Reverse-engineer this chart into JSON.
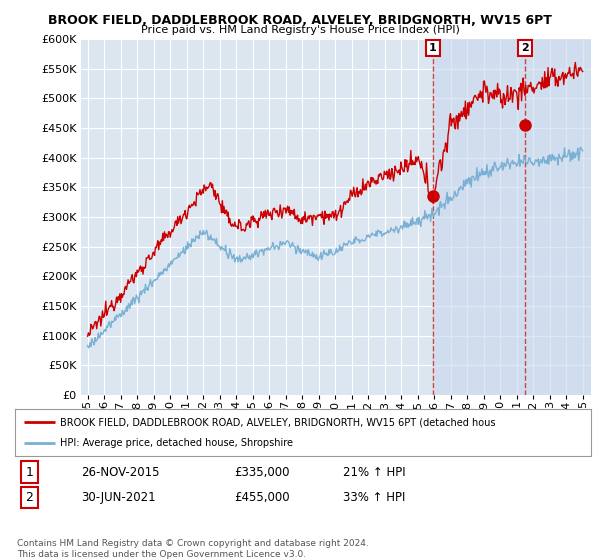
{
  "title": "BROOK FIELD, DADDLEBROOK ROAD, ALVELEY, BRIDGNORTH, WV15 6PT",
  "subtitle": "Price paid vs. HM Land Registry's House Price Index (HPI)",
  "background_color": "#ffffff",
  "plot_bg_color": "#dce6f1",
  "plot_bg_highlight": "#c8d8ec",
  "grid_color": "#ffffff",
  "red_line_color": "#cc0000",
  "blue_line_color": "#7ab0d4",
  "vline_color": "#cc4444",
  "ylim": [
    0,
    600000
  ],
  "yticks": [
    0,
    50000,
    100000,
    150000,
    200000,
    250000,
    300000,
    350000,
    400000,
    450000,
    500000,
    550000,
    600000
  ],
  "sale1_x": 2015.9,
  "sale1_value": 335000,
  "sale2_x": 2021.5,
  "sale2_value": 455000,
  "legend_red_label": "BROOK FIELD, DADDLEBROOK ROAD, ALVELEY, BRIDGNORTH, WV15 6PT (detached hous",
  "legend_blue_label": "HPI: Average price, detached house, Shropshire",
  "table_row1": [
    "1",
    "26-NOV-2015",
    "£335,000",
    "21% ↑ HPI"
  ],
  "table_row2": [
    "2",
    "30-JUN-2021",
    "£455,000",
    "33% ↑ HPI"
  ],
  "footer": "Contains HM Land Registry data © Crown copyright and database right 2024.\nThis data is licensed under the Open Government Licence v3.0.",
  "x_start_year": 1995,
  "x_end_year": 2025
}
